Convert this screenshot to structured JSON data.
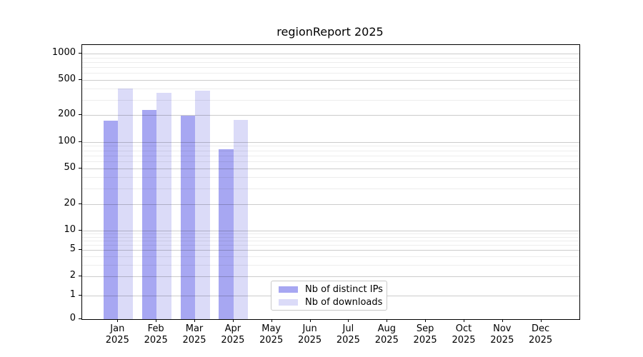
{
  "chart_data": {
    "type": "bar",
    "title": "regionReport 2025",
    "categories": [
      "Jan",
      "Feb",
      "Mar",
      "Apr",
      "May",
      "Jun",
      "Jul",
      "Aug",
      "Sep",
      "Oct",
      "Nov",
      "Dec"
    ],
    "category_year": "2025",
    "series": [
      {
        "name": "Nb of distinct IPs",
        "color": "#a7a7f2",
        "values": [
          175,
          230,
          198,
          83,
          0,
          0,
          0,
          0,
          0,
          0,
          0,
          0
        ]
      },
      {
        "name": "Nb of downloads",
        "color": "#dbdbf8",
        "values": [
          400,
          360,
          380,
          176,
          0,
          0,
          0,
          0,
          0,
          0,
          0,
          0
        ]
      }
    ],
    "y_axis": {
      "scale": "symlog",
      "tick_values": [
        1000,
        500,
        200,
        100,
        50,
        20,
        10,
        5,
        2,
        1,
        0
      ],
      "ylim": [
        0,
        1100
      ]
    },
    "x_axis": {
      "tick_label_format": "month-over-year"
    },
    "grid": {
      "major": true,
      "minor": true,
      "drawn_above_bars": true
    },
    "legend": {
      "position": "lower-center",
      "entries": [
        "Nb of distinct IPs",
        "Nb of downloads"
      ]
    }
  }
}
